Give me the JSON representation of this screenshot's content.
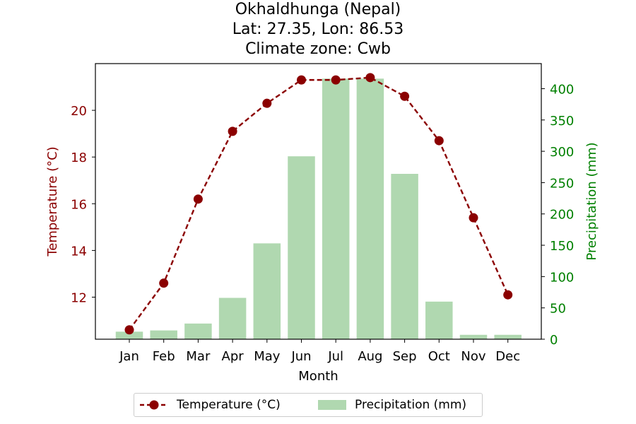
{
  "title": {
    "line1": "Okhaldhunga (Nepal)",
    "line2": "Lat: 27.35, Lon: 86.53",
    "line3": "Climate zone: Cwb"
  },
  "colors": {
    "temperature": "#8b0000",
    "precipitation_bar": "#b0d8b0",
    "precip_axis": "#008000"
  },
  "chart_data": {
    "type": "bar+line",
    "categories": [
      "Jan",
      "Feb",
      "Mar",
      "Apr",
      "May",
      "Jun",
      "Jul",
      "Aug",
      "Sep",
      "Oct",
      "Nov",
      "Dec"
    ],
    "xlabel": "Month",
    "series": [
      {
        "name": "Temperature (°C)",
        "type": "line",
        "axis": "left",
        "style": "dashed-with-circle-markers",
        "values": [
          10.6,
          12.6,
          16.2,
          19.1,
          20.3,
          21.3,
          21.3,
          21.4,
          20.6,
          18.7,
          15.4,
          12.1
        ]
      },
      {
        "name": "Precipitation (mm)",
        "type": "bar",
        "axis": "right",
        "values": [
          12,
          14,
          25,
          66,
          153,
          292,
          416,
          416,
          264,
          60,
          7,
          7
        ]
      }
    ],
    "y_left": {
      "label": "Temperature (°C)",
      "ticks": [
        12,
        14,
        16,
        18,
        20
      ],
      "range": [
        10.2,
        22.0
      ]
    },
    "y_right": {
      "label": "Precipitation (mm)",
      "ticks": [
        0,
        50,
        100,
        150,
        200,
        250,
        300,
        350,
        400
      ],
      "range": [
        0,
        440
      ]
    },
    "grid": false,
    "legend_position": "bottom-center"
  }
}
